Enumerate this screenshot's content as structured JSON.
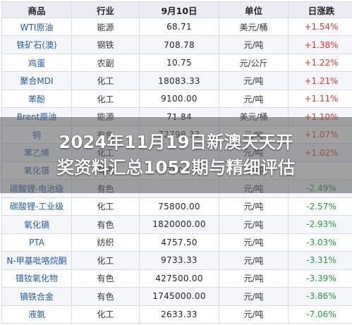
{
  "table": {
    "headers": [
      "商品",
      "行业",
      "9月10日",
      "单位",
      "日涨跌"
    ],
    "rows": [
      {
        "name": "WTI原油",
        "sector": "能源",
        "price": "68.71",
        "unit": "美元/桶",
        "change": "+1.54%",
        "direction": "up"
      },
      {
        "name": "铁矿石(澳)",
        "sector": "钢铁",
        "price": "708.78",
        "unit": "元/吨",
        "change": "+1.38%",
        "direction": "up"
      },
      {
        "name": "鸡蛋",
        "sector": "农副",
        "price": "10.75",
        "unit": "元/公斤",
        "change": "+1.22%",
        "direction": "up"
      },
      {
        "name": "聚合MDI",
        "sector": "化工",
        "price": "18083.33",
        "unit": "元/吨",
        "change": "+1.21%",
        "direction": "up"
      },
      {
        "name": "苯酚",
        "sector": "化工",
        "price": "9100.00",
        "unit": "元/吨",
        "change": "+1.11%",
        "direction": "up"
      },
      {
        "name": "Brent原油",
        "sector": "能源",
        "price": "71.84",
        "unit": "美元/桶",
        "change": "+1.10%",
        "direction": "up"
      },
      {
        "name": "铜",
        "sector": "有色",
        "price": "72798.33",
        "unit": "元/吨",
        "change": "+1.07%",
        "direction": "up"
      },
      {
        "name": "苯乙烯",
        "sector": "化工",
        "price": "",
        "unit": "元/吨",
        "change": "+1.02%",
        "direction": "up"
      },
      {
        "name": "氧化镨",
        "sector": "有色",
        "price": "437500.00",
        "unit": "元/吨",
        "change": "",
        "direction": "up"
      },
      {
        "name": "碳酸锂-电池级",
        "sector": "有色",
        "price": "",
        "unit": "元/吨",
        "change": "-2.49%",
        "direction": "down"
      },
      {
        "name": "碳酸锂-工业级",
        "sector": "化工",
        "price": "75800.00",
        "unit": "元/吨",
        "change": "-2.57%",
        "direction": "down"
      },
      {
        "name": "氧化镝",
        "sector": "有色",
        "price": "1820000.00",
        "unit": "元/吨",
        "change": "-2.93%",
        "direction": "down"
      },
      {
        "name": "PTA",
        "sector": "纺织",
        "price": "4757.50",
        "unit": "元/吨",
        "change": "-3.03%",
        "direction": "down"
      },
      {
        "name": "N-甲基吡咯烷酮",
        "sector": "化工",
        "price": "9733.33",
        "unit": "元/吨",
        "change": "-3.31%",
        "direction": "down"
      },
      {
        "name": "镨钕氧化物",
        "sector": "有色",
        "price": "427500.00",
        "unit": "元/吨",
        "change": "-3.39%",
        "direction": "down"
      },
      {
        "name": "镝铁合金",
        "sector": "有色",
        "price": "1745000.00",
        "unit": "元/吨",
        "change": "-3.86%",
        "direction": "down"
      },
      {
        "name": "液氨",
        "sector": "化工",
        "price": "2633.33",
        "unit": "元/吨",
        "change": "-7.06%",
        "direction": "down"
      }
    ]
  },
  "banner": {
    "line1": "2024年11月19日新澳天天开",
    "line2": "奖资料汇总1052期与精细评估"
  },
  "colors": {
    "up": "#e8312a",
    "down": "#1a9d3a",
    "name_text": "#1e5aa8",
    "header_bg": "#e9edf3"
  }
}
